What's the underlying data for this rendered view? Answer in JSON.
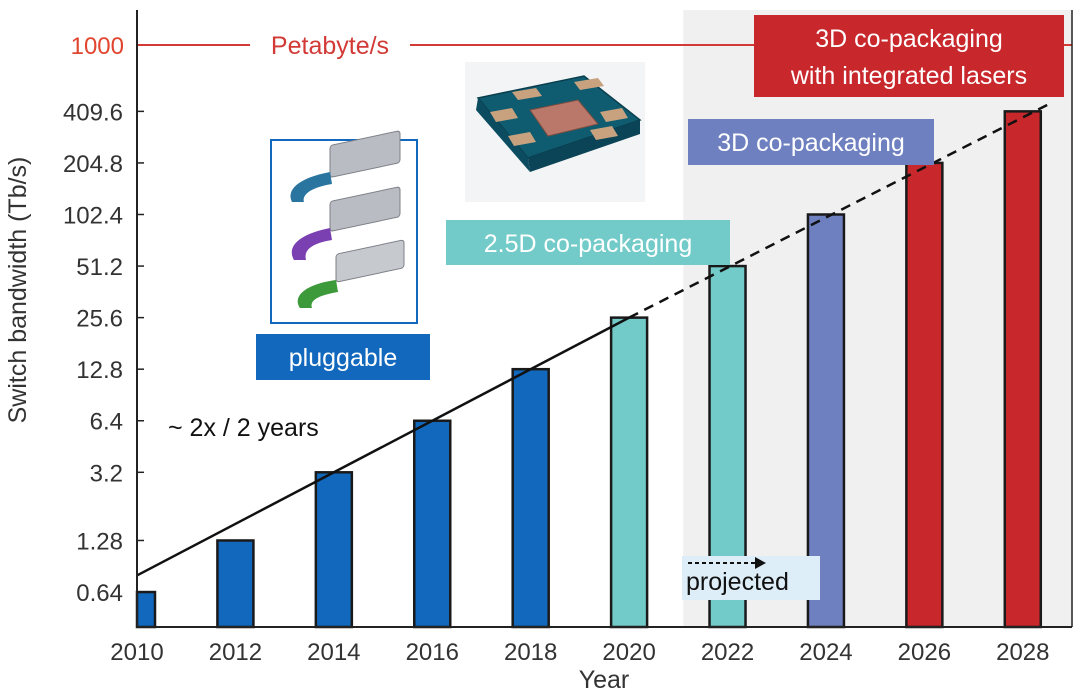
{
  "colors": {
    "pluggable": "#1168BD",
    "co_2_5d": "#72CBC8",
    "co_3d": "#6E80C0",
    "co_3d_lasers": "#C8282C",
    "petabyte_line": "#D23A36",
    "projected_bg": "#F0F0F0"
  },
  "chart_data": {
    "type": "bar",
    "xlabel": "Year",
    "ylabel": "Switch bandwidth (Tb/s)",
    "y_scale": "log2",
    "x_ticks": [
      "2010",
      "2012",
      "2014",
      "2016",
      "2018",
      "2020",
      "2022",
      "2024",
      "2026",
      "2028"
    ],
    "y_ticks": [
      "0.64",
      "1.28",
      "3.2",
      "6.4",
      "12.8",
      "25.6",
      "51.2",
      "102.4",
      "204.8",
      "409.6"
    ],
    "highlight_tick": "1000",
    "xlim": [
      2010,
      2029
    ],
    "ylim": [
      0.4,
      1600
    ],
    "bars": [
      {
        "year": 2010,
        "value": 0.64,
        "category": "pluggable"
      },
      {
        "year": 2012,
        "value": 1.28,
        "category": "pluggable"
      },
      {
        "year": 2014,
        "value": 3.2,
        "category": "pluggable"
      },
      {
        "year": 2016,
        "value": 6.4,
        "category": "pluggable"
      },
      {
        "year": 2018,
        "value": 12.8,
        "category": "pluggable"
      },
      {
        "year": 2020,
        "value": 25.6,
        "category": "co_2_5d"
      },
      {
        "year": 2022,
        "value": 51.2,
        "category": "co_2_5d"
      },
      {
        "year": 2024,
        "value": 102.4,
        "category": "co_3d"
      },
      {
        "year": 2026,
        "value": 204.8,
        "category": "co_3d_lasers"
      },
      {
        "year": 2028,
        "value": 409.6,
        "category": "co_3d_lasers"
      }
    ],
    "trend": {
      "label": "~ 2x / 2 years",
      "start": [
        2010,
        0.8
      ],
      "solid_until": [
        2020,
        25.6
      ],
      "end": [
        2029,
        500
      ]
    },
    "reference_line": {
      "value": 1000,
      "label": "Petabyte/s"
    },
    "projected_region": {
      "from": 2021.1,
      "to": 2029,
      "label": "projected"
    },
    "category_labels": {
      "pluggable": "pluggable",
      "co_2_5d": "2.5D co-packaging",
      "co_3d": "3D co-packaging",
      "co_3d_lasers_line1": "3D co-packaging",
      "co_3d_lasers_line2": "with integrated lasers"
    }
  }
}
